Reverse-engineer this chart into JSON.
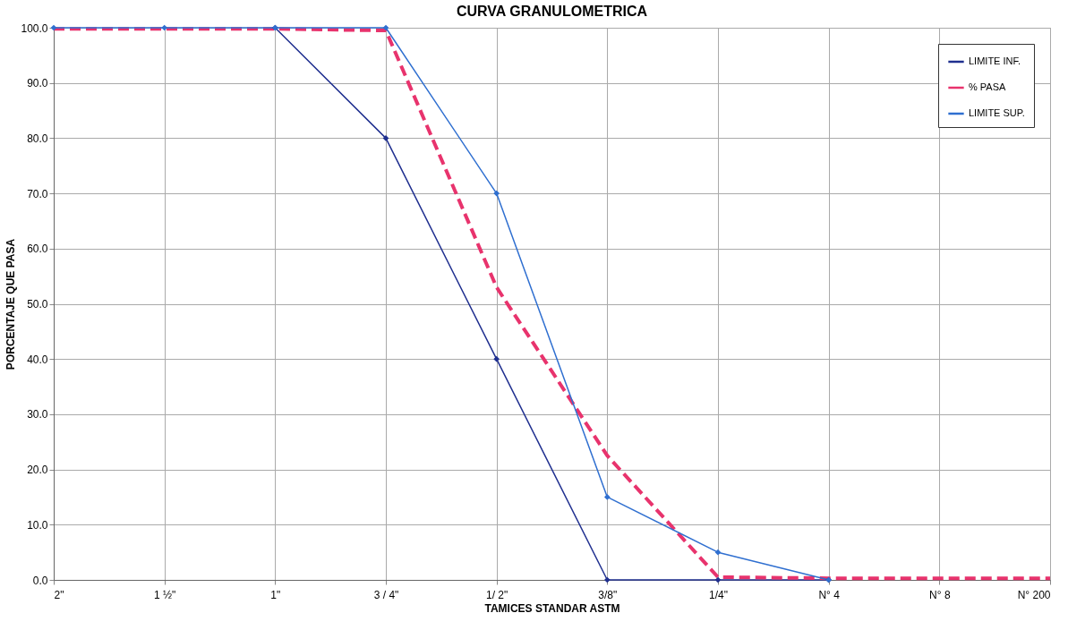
{
  "chart_data": {
    "type": "line",
    "title": "CURVA  GRANULOMETRICA",
    "xlabel": "TAMICES STANDAR ASTM",
    "ylabel": "PORCENTAJE QUE PASA",
    "categories": [
      "2\"",
      "1 ½\"",
      "1\"",
      "3 / 4\"",
      "1/ 2\"",
      "3/8\"",
      "1/4\"",
      "N° 4",
      "N° 8",
      "N° 200"
    ],
    "series": [
      {
        "name": "LIMITE INF.",
        "color": "#1f2f8f",
        "marker": "diamond",
        "line_style": "solid",
        "values": [
          null,
          null,
          100,
          80,
          40,
          0,
          0,
          0,
          null,
          null
        ]
      },
      {
        "name": "% PASA",
        "color": "#e8336d",
        "marker": "none",
        "line_style": "dashed",
        "values": [
          99.8,
          99.8,
          99.8,
          99.5,
          53,
          22.5,
          0.5,
          0.3,
          0.3,
          0.3
        ]
      },
      {
        "name": "LIMITE SUP.",
        "color": "#2f6fd0",
        "marker": "diamond",
        "line_style": "solid",
        "values": [
          100,
          100,
          100,
          100,
          70,
          15,
          5,
          0,
          null,
          null
        ]
      }
    ],
    "ylim": [
      0,
      100
    ],
    "yticks": [
      {
        "value": 0,
        "label": "0.0"
      },
      {
        "value": 10,
        "label": "10.0"
      },
      {
        "value": 20,
        "label": "20.0"
      },
      {
        "value": 30,
        "label": "30.0"
      },
      {
        "value": 40,
        "label": "40.0"
      },
      {
        "value": 50,
        "label": "50.0"
      },
      {
        "value": 60,
        "label": "60.0"
      },
      {
        "value": 70,
        "label": "70.0"
      },
      {
        "value": 80,
        "label": "80.0"
      },
      {
        "value": 90,
        "label": "90.0"
      },
      {
        "value": 100,
        "label": "100.0"
      }
    ],
    "grid": true,
    "legend": "top right"
  }
}
